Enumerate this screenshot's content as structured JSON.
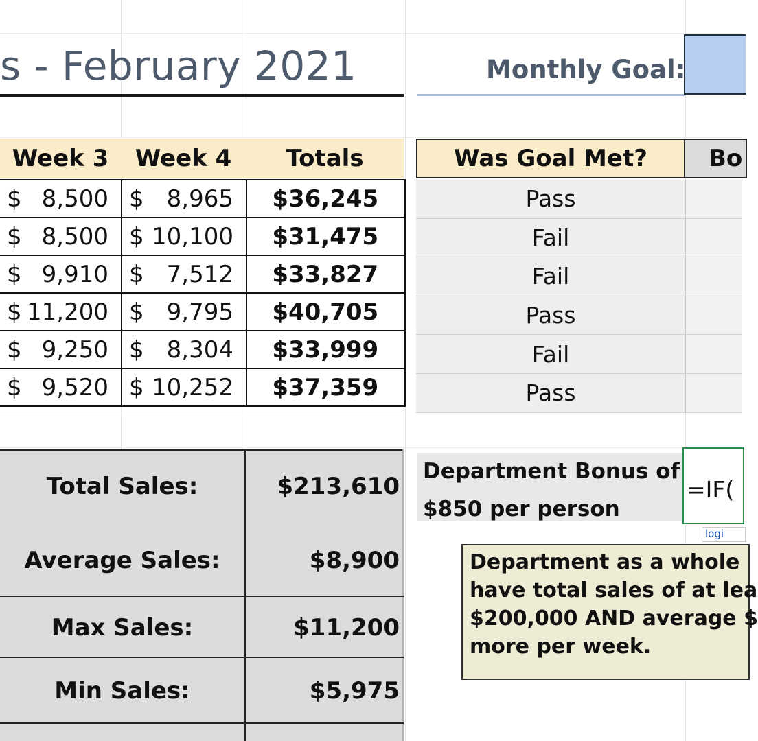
{
  "header": {
    "title": "s - February 2021",
    "goal_label": "Monthly Goal:",
    "goal_value": ""
  },
  "columns": {
    "week3": "Week 3",
    "week4": "Week 4",
    "totals": "Totals",
    "goal_met": "Was Goal Met?",
    "bonus_partial": "Bo"
  },
  "rows": [
    {
      "w3": "8,500",
      "w4": "8,965",
      "total": "$36,245",
      "goal": "Pass"
    },
    {
      "w3": "8,500",
      "w4": "10,100",
      "total": "$31,475",
      "goal": "Fail"
    },
    {
      "w3": "9,910",
      "w4": "7,512",
      "total": "$33,827",
      "goal": "Fail"
    },
    {
      "w3": "11,200",
      "w4": "9,795",
      "total": "$40,705",
      "goal": "Pass"
    },
    {
      "w3": "9,250",
      "w4": "8,304",
      "total": "$33,999",
      "goal": "Fail"
    },
    {
      "w3": "9,520",
      "w4": "10,252",
      "total": "$37,359",
      "goal": "Pass"
    }
  ],
  "currency": "$",
  "stats": {
    "total_label": "Total Sales:",
    "total_value": "$213,610",
    "avg_label": "Average Sales:",
    "avg_value": "$8,900",
    "max_label": "Max Sales:",
    "max_value": "$11,200",
    "min_label": "Min Sales:",
    "min_value": "$5,975"
  },
  "dept": {
    "line1": "Department Bonus of",
    "line2": "$850 per person",
    "formula": "=IF(",
    "tooltip": "logi",
    "note_lines": [
      "Department as a whole",
      "have total sales of at lea",
      "$200,000 AND average $",
      "more per week."
    ]
  },
  "colors": {
    "header_fill": "#fbecc9",
    "goal_input_fill": "#b7cff0",
    "title_color": "#4d5a6c",
    "note_fill": "#efecd5",
    "active_cell_border": "#2a8a4a"
  }
}
